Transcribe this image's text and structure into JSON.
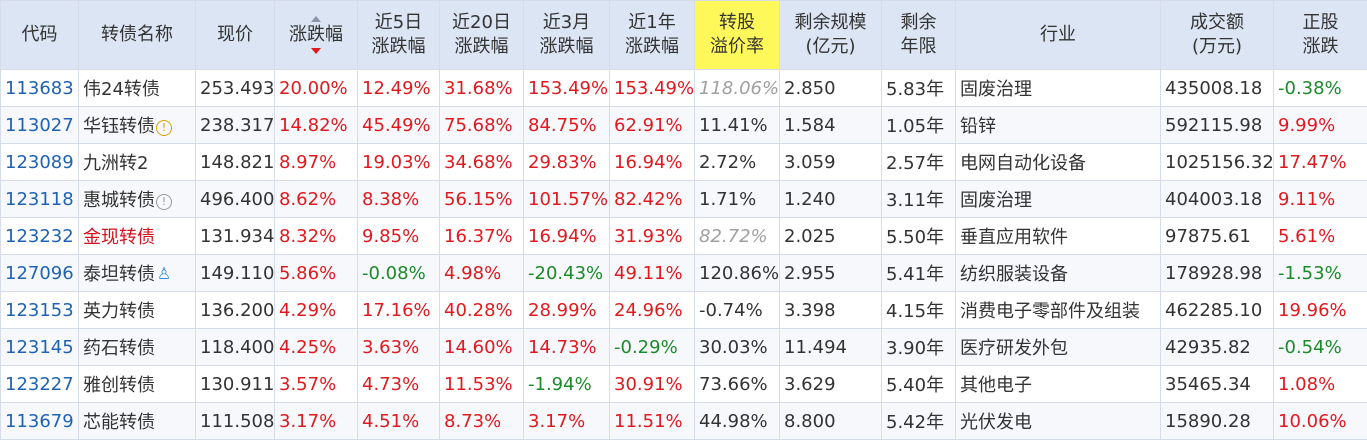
{
  "headers": [
    {
      "l1": "代码"
    },
    {
      "l1": "转债名称"
    },
    {
      "l1": "现价"
    },
    {
      "l1": "涨跌幅",
      "sorted": "desc"
    },
    {
      "l1": "近5日",
      "l2": "涨跌幅"
    },
    {
      "l1": "近20日",
      "l2": "涨跌幅"
    },
    {
      "l1": "近3月",
      "l2": "涨跌幅"
    },
    {
      "l1": "近1年",
      "l2": "涨跌幅"
    },
    {
      "l1": "转股",
      "l2": "溢价率",
      "highlight": true
    },
    {
      "l1": "剩余规模",
      "l2": "(亿元)"
    },
    {
      "l1": "剩余",
      "l2": "年限"
    },
    {
      "l1": "行业"
    },
    {
      "l1": "成交额",
      "l2": "(万元)"
    },
    {
      "l1": "正股",
      "l2": "涨跌"
    }
  ],
  "rows": [
    {
      "code": "113683",
      "name": "伟24转债",
      "badge": "",
      "name_style": "",
      "price": "253.493",
      "chg": "20.00%",
      "chg5": "12.49%",
      "chg20": "31.68%",
      "chg3m": "153.49%",
      "chg1y": "153.49%",
      "premium": "118.06%",
      "premium_style": "gray",
      "size": "2.850",
      "years": "5.83年",
      "industry": "固废治理",
      "turnover": "435008.18",
      "stock_chg": "-0.38%"
    },
    {
      "code": "113027",
      "name": "华钰转债",
      "badge": "warn",
      "name_style": "",
      "price": "238.317",
      "chg": "14.82%",
      "chg5": "45.49%",
      "chg20": "75.68%",
      "chg3m": "84.75%",
      "chg1y": "62.91%",
      "premium": "11.41%",
      "premium_style": "",
      "size": "1.584",
      "years": "1.05年",
      "industry": "铅锌",
      "turnover": "592115.98",
      "stock_chg": "9.99%"
    },
    {
      "code": "123089",
      "name": "九洲转2",
      "badge": "",
      "name_style": "",
      "price": "148.821",
      "chg": "8.97%",
      "chg5": "19.03%",
      "chg20": "34.68%",
      "chg3m": "29.83%",
      "chg1y": "16.94%",
      "premium": "2.72%",
      "premium_style": "",
      "size": "3.059",
      "years": "2.57年",
      "industry": "电网自动化设备",
      "turnover": "1025156.32",
      "stock_chg": "17.47%"
    },
    {
      "code": "123118",
      "name": "惠城转债",
      "badge": "info",
      "name_style": "",
      "price": "496.400",
      "chg": "8.62%",
      "chg5": "8.38%",
      "chg20": "56.15%",
      "chg3m": "101.57%",
      "chg1y": "82.42%",
      "premium": "1.71%",
      "premium_style": "",
      "size": "1.240",
      "years": "3.11年",
      "industry": "固废治理",
      "turnover": "404003.18",
      "stock_chg": "9.11%"
    },
    {
      "code": "123232",
      "name": "金现转债",
      "badge": "",
      "name_style": "red",
      "price": "131.934",
      "chg": "8.32%",
      "chg5": "9.85%",
      "chg20": "16.37%",
      "chg3m": "16.94%",
      "chg1y": "31.93%",
      "premium": "82.72%",
      "premium_style": "gray",
      "size": "2.025",
      "years": "5.50年",
      "industry": "垂直应用软件",
      "turnover": "97875.61",
      "stock_chg": "5.61%"
    },
    {
      "code": "127096",
      "name": "泰坦转债",
      "badge": "user",
      "name_style": "",
      "price": "149.110",
      "chg": "5.86%",
      "chg5": "-0.08%",
      "chg20": "4.98%",
      "chg3m": "-20.43%",
      "chg1y": "49.11%",
      "premium": "120.86%",
      "premium_style": "",
      "size": "2.955",
      "years": "5.41年",
      "industry": "纺织服装设备",
      "turnover": "178928.98",
      "stock_chg": "-1.53%"
    },
    {
      "code": "123153",
      "name": "英力转债",
      "badge": "",
      "name_style": "",
      "price": "136.200",
      "chg": "4.29%",
      "chg5": "17.16%",
      "chg20": "40.28%",
      "chg3m": "28.99%",
      "chg1y": "24.96%",
      "premium": "-0.74%",
      "premium_style": "",
      "size": "3.398",
      "years": "4.15年",
      "industry": "消费电子零部件及组装",
      "turnover": "462285.10",
      "stock_chg": "19.96%"
    },
    {
      "code": "123145",
      "name": "药石转债",
      "badge": "",
      "name_style": "",
      "price": "118.400",
      "chg": "4.25%",
      "chg5": "3.63%",
      "chg20": "14.60%",
      "chg3m": "14.73%",
      "chg1y": "-0.29%",
      "premium": "30.03%",
      "premium_style": "",
      "size": "11.494",
      "years": "3.90年",
      "industry": "医疗研发外包",
      "turnover": "42935.82",
      "stock_chg": "-0.54%"
    },
    {
      "code": "123227",
      "name": "雅创转债",
      "badge": "",
      "name_style": "",
      "price": "130.911",
      "chg": "3.57%",
      "chg5": "4.73%",
      "chg20": "11.53%",
      "chg3m": "-1.94%",
      "chg1y": "30.91%",
      "premium": "73.66%",
      "premium_style": "",
      "size": "3.629",
      "years": "5.40年",
      "industry": "其他电子",
      "turnover": "35465.34",
      "stock_chg": "1.08%"
    },
    {
      "code": "113679",
      "name": "芯能转债",
      "badge": "",
      "name_style": "",
      "price": "111.508",
      "chg": "3.17%",
      "chg5": "4.51%",
      "chg20": "8.73%",
      "chg3m": "3.17%",
      "chg1y": "11.51%",
      "premium": "44.98%",
      "premium_style": "",
      "size": "8.800",
      "years": "5.42年",
      "industry": "光伏发电",
      "turnover": "15890.28",
      "stock_chg": "10.06%"
    }
  ],
  "badges": {
    "warn": "!",
    "info": "!",
    "user": "♙"
  },
  "colors": {
    "header_bg": "#dbe5f3",
    "highlight": "#fff85a",
    "up": "#e0191e",
    "down": "#1b8a2a",
    "code": "#1f62b3",
    "border": "#d6dde8"
  }
}
